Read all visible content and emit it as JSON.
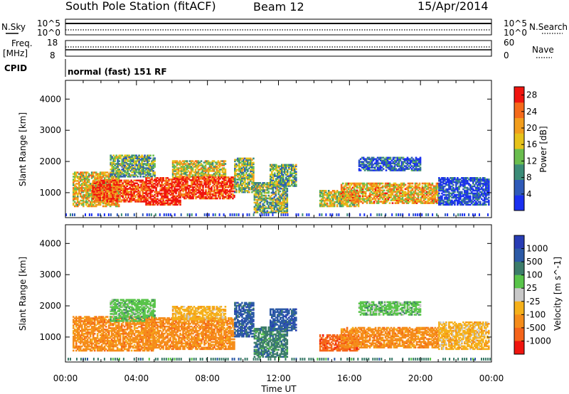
{
  "header": {
    "title": "South Pole Station (fitACF)",
    "beam": "Beam 12",
    "date": "15/Apr/2014"
  },
  "strip_panels": {
    "nsky": {
      "label": "N.Sky",
      "ticks": [
        "10^5",
        "10^0"
      ]
    },
    "nsearch": {
      "label": "N.Search",
      "ticks": [
        "10^5",
        "10^0"
      ]
    },
    "freq": {
      "label_line1": "Freq.",
      "label_line2": "[MHz]",
      "ticks": [
        "18",
        "8"
      ]
    },
    "nave": {
      "label": "Nave",
      "ticks": [
        "60",
        "0"
      ]
    },
    "cpid": {
      "label": "CPID",
      "value": "normal (fast) 151 RF"
    }
  },
  "colors": {
    "power_scale": [
      "#1a30f0",
      "#2f5ab8",
      "#3c8c78",
      "#6abd4e",
      "#e6c21a",
      "#f29d1c",
      "#f56a1a",
      "#f0140e"
    ],
    "velocity_scale": [
      "#283cb4",
      "#2c5aa6",
      "#3c7c6a",
      "#59c44a",
      "#c8c8c8",
      "#f5b01a",
      "#f58c1a",
      "#f5641a",
      "#f0140e"
    ]
  },
  "chart_data": [
    {
      "type": "heatmap",
      "name": "power",
      "ylabel": "Slant Range [km]",
      "xlabel": "Time UT",
      "x_ticks": [
        "00:00",
        "04:00",
        "08:00",
        "12:00",
        "16:00",
        "20:00",
        "00:00"
      ],
      "x_range_hours": [
        0,
        24
      ],
      "y_range_km": [
        200,
        4600
      ],
      "y_ticks": [
        1000,
        2000,
        3000,
        4000
      ],
      "colorbar": {
        "title": "Power [dB]",
        "ticks": [
          4,
          8,
          12,
          16,
          20,
          24,
          28
        ],
        "range": [
          0,
          30
        ]
      },
      "regions": [
        {
          "t0": 0.4,
          "t1": 3.0,
          "r0": 550,
          "r1": 1650,
          "level": 0.6
        },
        {
          "t0": 1.5,
          "t1": 4.5,
          "r0": 700,
          "r1": 1400,
          "level": 0.88
        },
        {
          "t0": 2.5,
          "t1": 5.0,
          "r0": 1500,
          "r1": 2200,
          "level": 0.38
        },
        {
          "t0": 4.5,
          "t1": 6.5,
          "r0": 600,
          "r1": 1500,
          "level": 0.95
        },
        {
          "t0": 6.0,
          "t1": 9.0,
          "r0": 1500,
          "r1": 2000,
          "level": 0.55
        },
        {
          "t0": 6.5,
          "t1": 9.5,
          "r0": 800,
          "r1": 1500,
          "level": 0.92
        },
        {
          "t0": 9.5,
          "t1": 10.6,
          "r0": 1000,
          "r1": 2100,
          "level": 0.45
        },
        {
          "t0": 10.6,
          "t1": 12.5,
          "r0": 350,
          "r1": 1300,
          "level": 0.42
        },
        {
          "t0": 11.5,
          "t1": 13.0,
          "r0": 1200,
          "r1": 1900,
          "level": 0.4
        },
        {
          "t0": 14.3,
          "t1": 16.5,
          "r0": 550,
          "r1": 1050,
          "level": 0.55
        },
        {
          "t0": 15.5,
          "t1": 21.0,
          "r0": 650,
          "r1": 1300,
          "level": 0.65
        },
        {
          "t0": 16.5,
          "t1": 20.0,
          "r0": 1700,
          "r1": 2150,
          "level": 0.18
        },
        {
          "t0": 21.0,
          "t1": 23.8,
          "r0": 600,
          "r1": 1500,
          "level": 0.12
        }
      ]
    },
    {
      "type": "heatmap",
      "name": "velocity",
      "ylabel": "Slant Range [km]",
      "xlabel": "Time UT",
      "x_ticks": [
        "00:00",
        "04:00",
        "08:00",
        "12:00",
        "16:00",
        "20:00",
        "00:00"
      ],
      "x_range_hours": [
        0,
        24
      ],
      "y_range_km": [
        200,
        4600
      ],
      "y_ticks": [
        1000,
        2000,
        3000,
        4000
      ],
      "colorbar": {
        "title": "Velocity [m s^-1]",
        "ticks": [
          "1000",
          "500",
          "100",
          "25",
          "-25",
          "-100",
          "-500",
          "-1000"
        ]
      },
      "regions": [
        {
          "t0": 0.4,
          "t1": 5.0,
          "r0": 550,
          "r1": 1650,
          "velocity": -500
        },
        {
          "t0": 2.5,
          "t1": 5.0,
          "r0": 1500,
          "r1": 2200,
          "velocity": 25
        },
        {
          "t0": 4.5,
          "t1": 9.5,
          "r0": 600,
          "r1": 1600,
          "velocity": -500
        },
        {
          "t0": 6.0,
          "t1": 9.0,
          "r0": 1550,
          "r1": 2000,
          "velocity": -100
        },
        {
          "t0": 9.5,
          "t1": 10.6,
          "r0": 1000,
          "r1": 2100,
          "velocity": 500
        },
        {
          "t0": 10.6,
          "t1": 12.5,
          "r0": 350,
          "r1": 1300,
          "velocity": 100
        },
        {
          "t0": 11.5,
          "t1": 13.0,
          "r0": 1200,
          "r1": 1900,
          "velocity": 500
        },
        {
          "t0": 14.3,
          "t1": 16.5,
          "r0": 550,
          "r1": 1050,
          "velocity": -1000
        },
        {
          "t0": 15.5,
          "t1": 21.0,
          "r0": 650,
          "r1": 1300,
          "velocity": -500
        },
        {
          "t0": 16.5,
          "t1": 20.0,
          "r0": 1700,
          "r1": 2150,
          "velocity": 25
        },
        {
          "t0": 21.0,
          "t1": 23.8,
          "r0": 600,
          "r1": 1500,
          "velocity": -100
        }
      ]
    }
  ]
}
